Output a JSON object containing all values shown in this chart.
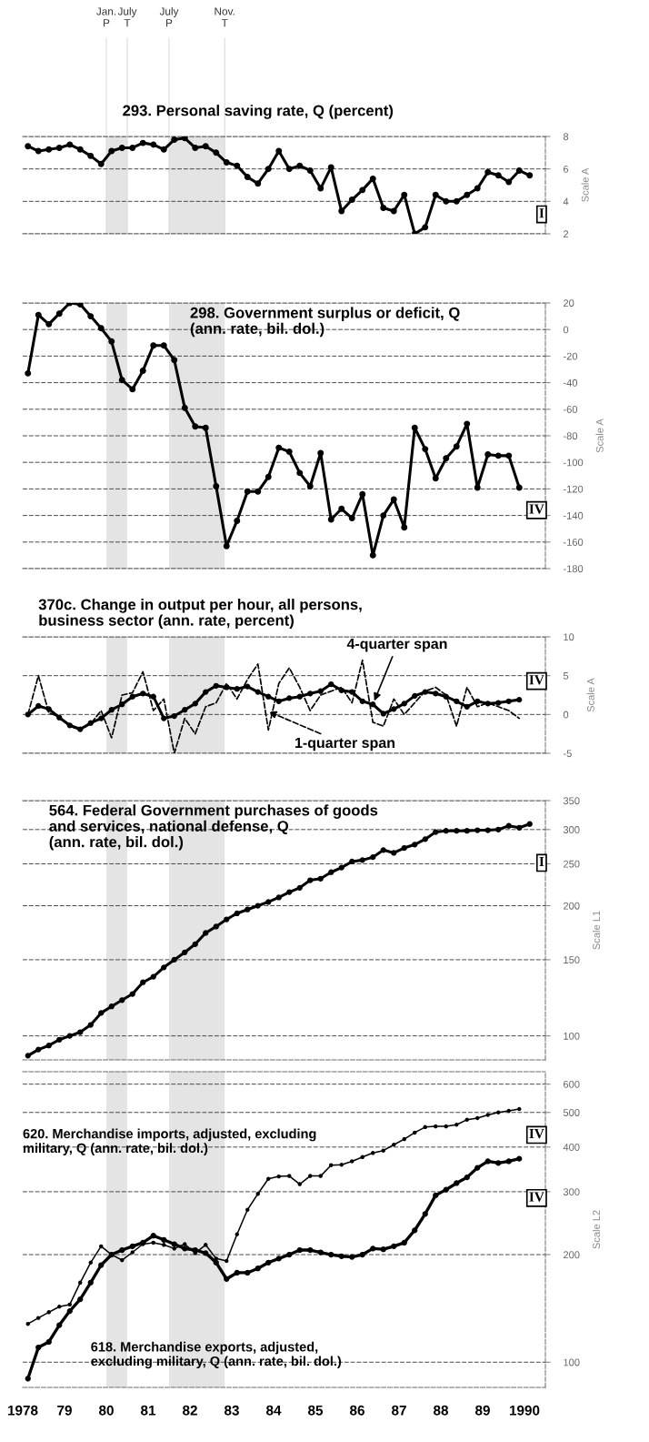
{
  "chart_data": [
    {
      "type": "line",
      "title": "293. Personal saving rate, Q (percent)",
      "ylabel": "Scale A",
      "x": [
        1978.125,
        1978.375,
        1978.625,
        1978.875,
        1979.125,
        1979.375,
        1979.625,
        1979.875,
        1980.125,
        1980.375,
        1980.625,
        1980.875,
        1981.125,
        1981.375,
        1981.625,
        1981.875,
        1982.125,
        1982.375,
        1982.625,
        1982.875,
        1983.125,
        1983.375,
        1983.625,
        1983.875,
        1984.125,
        1984.375,
        1984.625,
        1984.875,
        1985.125,
        1985.375,
        1985.625,
        1985.875,
        1986.125,
        1986.375,
        1986.625,
        1986.875,
        1987.125,
        1987.375,
        1987.625,
        1987.875,
        1988.125,
        1988.375,
        1988.625,
        1988.875,
        1989.125,
        1989.375,
        1989.625,
        1989.875,
        1990.125
      ],
      "series": [
        {
          "color": "#000000",
          "values": [
            7.4,
            7.1,
            7.2,
            7.3,
            7.5,
            7.2,
            6.8,
            6.3,
            7.1,
            7.3,
            7.3,
            7.6,
            7.5,
            7.2,
            7.8,
            7.9,
            7.3,
            7.4,
            7.0,
            6.4,
            6.2,
            5.5,
            5.1,
            6.0,
            7.1,
            6.0,
            6.2,
            5.9,
            4.8,
            6.1,
            3.4,
            4.1,
            4.7,
            5.4,
            3.6,
            3.4,
            4.4,
            2.0,
            2.4,
            4.4,
            4.0,
            4.0,
            4.4,
            4.8,
            5.8,
            5.6,
            5.2,
            5.9,
            5.6
          ]
        }
      ],
      "marker": "circle",
      "xlim": [
        1978,
        1990.5
      ],
      "ylim": [
        2,
        8
      ],
      "yticks": [
        2,
        4,
        6,
        8
      ],
      "grid": "y",
      "tick_labels": "y",
      "bands": [
        {
          "axis": "x",
          "from": 1980.0,
          "to": 1980.5,
          "color": "#e4e4e4"
        },
        {
          "axis": "x",
          "from": 1981.5,
          "to": 1982.83,
          "color": "#e4e4e4"
        }
      ],
      "ref_lines": [
        {
          "axis": "x",
          "value": 1980.0,
          "label": "Jan.\nP",
          "color": "#d0d0d0"
        },
        {
          "axis": "x",
          "value": 1980.5,
          "label": "July\nT",
          "color": "#d0d0d0"
        },
        {
          "axis": "x",
          "value": 1981.5,
          "label": "July\nP",
          "color": "#d0d0d0"
        },
        {
          "axis": "x",
          "value": 1982.83,
          "label": "Nov.\nT",
          "color": "#d0d0d0"
        }
      ],
      "annotations": [
        "I"
      ]
    },
    {
      "type": "line",
      "title": "298. Government surplus or deficit, Q\n(ann. rate, bil. dol.)",
      "ylabel": "Scale A",
      "x": [
        1978.125,
        1978.375,
        1978.625,
        1978.875,
        1979.125,
        1979.375,
        1979.625,
        1979.875,
        1980.125,
        1980.375,
        1980.625,
        1980.875,
        1981.125,
        1981.375,
        1981.625,
        1981.875,
        1982.125,
        1982.375,
        1982.625,
        1982.875,
        1983.125,
        1983.375,
        1983.625,
        1983.875,
        1984.125,
        1984.375,
        1984.625,
        1984.875,
        1985.125,
        1985.375,
        1985.625,
        1985.875,
        1986.125,
        1986.375,
        1986.625,
        1986.875,
        1987.125,
        1987.375,
        1987.625,
        1987.875,
        1988.125,
        1988.375,
        1988.625,
        1988.875,
        1989.125,
        1989.375,
        1989.625,
        1989.875
      ],
      "series": [
        {
          "color": "#000000",
          "values": [
            -33,
            11,
            4,
            12,
            20,
            19,
            10,
            1,
            -9,
            -38,
            -45,
            -31,
            -12,
            -12,
            -23,
            -59,
            -73,
            -74,
            -118,
            -163,
            -144,
            -122,
            -122,
            -111,
            -89,
            -92,
            -108,
            -118,
            -93,
            -143,
            -135,
            -142,
            -124,
            -170,
            -140,
            -128,
            -149,
            -74,
            -90,
            -112,
            -97,
            -88,
            -71,
            -119,
            -94,
            -95,
            -95,
            -119
          ]
        }
      ],
      "marker": "circle",
      "xlim": [
        1978,
        1990.5
      ],
      "ylim": [
        -180,
        20
      ],
      "yticks": [
        -180,
        -160,
        -140,
        -120,
        -100,
        -80,
        -60,
        -40,
        -20,
        0,
        20
      ],
      "grid": "y",
      "tick_labels": "y",
      "bands": [
        {
          "axis": "x",
          "from": 1980.0,
          "to": 1980.5,
          "color": "#e4e4e4"
        },
        {
          "axis": "x",
          "from": 1981.5,
          "to": 1982.83,
          "color": "#e4e4e4"
        }
      ],
      "annotations": [
        "IV"
      ]
    },
    {
      "type": "line",
      "title": "370c. Change in output per hour, all persons,\nbusiness sector (ann. rate, percent)",
      "ylabel": "Scale A",
      "x": [
        1978.125,
        1978.375,
        1978.625,
        1978.875,
        1979.125,
        1979.375,
        1979.625,
        1979.875,
        1980.125,
        1980.375,
        1980.625,
        1980.875,
        1981.125,
        1981.375,
        1981.625,
        1981.875,
        1982.125,
        1982.375,
        1982.625,
        1982.875,
        1983.125,
        1983.375,
        1983.625,
        1983.875,
        1984.125,
        1984.375,
        1984.625,
        1984.875,
        1985.125,
        1985.375,
        1985.625,
        1985.875,
        1986.125,
        1986.375,
        1986.625,
        1986.875,
        1987.125,
        1987.375,
        1987.625,
        1987.875,
        1988.125,
        1988.375,
        1988.625,
        1988.875,
        1989.125,
        1989.375,
        1989.625,
        1989.875
      ],
      "series": [
        {
          "name": "4-quarter span",
          "color": "#000000",
          "marker": "circle",
          "line_style": "solid",
          "values": [
            0.0,
            1.1,
            0.7,
            -0.4,
            -1.4,
            -1.9,
            -1.1,
            -0.5,
            0.6,
            1.3,
            2.3,
            2.7,
            2.3,
            -0.5,
            -0.2,
            0.6,
            1.4,
            2.9,
            3.7,
            3.5,
            3.3,
            3.6,
            2.9,
            2.3,
            1.7,
            2.1,
            2.3,
            2.7,
            3.0,
            3.9,
            3.1,
            2.9,
            1.7,
            1.3,
            0.1,
            0.7,
            1.4,
            2.4,
            2.9,
            2.7,
            2.3,
            1.7,
            1.0,
            1.7,
            1.4,
            1.5,
            1.7,
            1.9
          ]
        },
        {
          "name": "1-quarter span",
          "color": "#000000",
          "marker": "none",
          "line_style": "dashed",
          "values": [
            0.0,
            5.0,
            0.2,
            -0.3,
            -1.5,
            -2.0,
            -1.2,
            0.5,
            -3.0,
            2.5,
            2.8,
            5.5,
            0.5,
            2.0,
            -5.0,
            -0.5,
            -2.5,
            1.0,
            1.5,
            4.0,
            2.0,
            4.5,
            6.5,
            -2.0,
            4.0,
            6.0,
            3.5,
            0.5,
            2.5,
            3.0,
            3.5,
            1.5,
            7.0,
            -1.0,
            -1.5,
            2.0,
            0.0,
            1.5,
            3.0,
            3.5,
            2.5,
            -1.5,
            3.5,
            1.0,
            1.5,
            1.0,
            0.5,
            -0.5
          ]
        }
      ],
      "xlim": [
        1978,
        1990.5
      ],
      "ylim": [
        -5,
        10
      ],
      "yticks": [
        -5,
        0,
        5,
        10
      ],
      "grid": "y",
      "tick_labels": "y",
      "bands": [
        {
          "axis": "x",
          "from": 1980.0,
          "to": 1980.5,
          "color": "#e4e4e4"
        },
        {
          "axis": "x",
          "from": 1981.5,
          "to": 1982.83,
          "color": "#e4e4e4"
        }
      ],
      "annotations": [
        "IV"
      ]
    },
    {
      "type": "line",
      "title": "564. Federal Government purchases of goods\nand services, national defense, Q\n(ann. rate, bil. dol.)",
      "ylabel": "Scale L1",
      "x": [
        1978.125,
        1978.375,
        1978.625,
        1978.875,
        1979.125,
        1979.375,
        1979.625,
        1979.875,
        1980.125,
        1980.375,
        1980.625,
        1980.875,
        1981.125,
        1981.375,
        1981.625,
        1981.875,
        1982.125,
        1982.375,
        1982.625,
        1982.875,
        1983.125,
        1983.375,
        1983.625,
        1983.875,
        1984.125,
        1984.375,
        1984.625,
        1984.875,
        1985.125,
        1985.375,
        1985.625,
        1985.875,
        1986.125,
        1986.375,
        1986.625,
        1986.875,
        1987.125,
        1987.375,
        1987.625,
        1987.875,
        1988.125,
        1988.375,
        1988.625,
        1988.875,
        1989.125,
        1989.375,
        1989.625,
        1989.875,
        1990.125
      ],
      "series": [
        {
          "color": "#000000",
          "values": [
            90,
            93,
            95,
            98,
            100,
            102,
            106,
            113,
            117,
            121,
            125,
            133,
            137,
            144,
            150,
            156,
            163,
            173,
            179,
            186,
            192,
            196,
            200,
            204,
            209,
            215,
            220,
            229,
            231,
            239,
            245,
            253,
            255,
            259,
            269,
            265,
            272,
            277,
            285,
            296,
            298,
            298,
            298,
            299,
            299,
            300,
            306,
            303,
            309
          ]
        }
      ],
      "marker": "circle",
      "log": true,
      "xlim": [
        1978,
        1990.5
      ],
      "ylim": [
        88,
        350
      ],
      "yticks": [
        100,
        150,
        200,
        250,
        300,
        350
      ],
      "grid": "y",
      "tick_labels": "y",
      "bands": [
        {
          "axis": "x",
          "from": 1980.0,
          "to": 1980.5,
          "color": "#e4e4e4"
        },
        {
          "axis": "x",
          "from": 1981.5,
          "to": 1982.83,
          "color": "#e4e4e4"
        }
      ],
      "annotations": [
        "I"
      ]
    },
    {
      "type": "line",
      "ylabel": "Scale L2",
      "x": [
        1978.125,
        1978.375,
        1978.625,
        1978.875,
        1979.125,
        1979.375,
        1979.625,
        1979.875,
        1980.125,
        1980.375,
        1980.625,
        1980.875,
        1981.125,
        1981.375,
        1981.625,
        1981.875,
        1982.125,
        1982.375,
        1982.625,
        1982.875,
        1983.125,
        1983.375,
        1983.625,
        1983.875,
        1984.125,
        1984.375,
        1984.625,
        1984.875,
        1985.125,
        1985.375,
        1985.625,
        1985.875,
        1986.125,
        1986.375,
        1986.625,
        1986.875,
        1987.125,
        1987.375,
        1987.625,
        1987.875,
        1988.125,
        1988.375,
        1988.625,
        1988.875,
        1989.125,
        1989.375,
        1989.625,
        1989.875
      ],
      "series": [
        {
          "name": "620. Merchandise imports, adjusted, excluding\nmilitary, Q (ann. rate, bil. dol.)",
          "color": "#000000",
          "marker": "circle",
          "values": [
            128,
            133,
            138,
            143,
            145,
            167,
            190,
            211,
            200,
            193,
            203,
            214,
            216,
            213,
            208,
            214,
            202,
            213,
            195,
            192,
            228,
            267,
            296,
            326,
            331,
            332,
            315,
            332,
            332,
            356,
            357,
            365,
            375,
            385,
            391,
            406,
            421,
            439,
            455,
            457,
            457,
            462,
            477,
            482,
            492,
            500,
            505,
            511
          ]
        },
        {
          "name": "618. Merchandise exports, adjusted,\nexcluding military, Q (ann. rate, bil. dol.)",
          "color": "#000000",
          "marker": "circle",
          "values": [
            90,
            110,
            114,
            127,
            139,
            150,
            167,
            187,
            200,
            206,
            211,
            216,
            226,
            220,
            214,
            208,
            206,
            202,
            190,
            171,
            178,
            178,
            183,
            190,
            195,
            200,
            206,
            206,
            203,
            200,
            198,
            197,
            200,
            208,
            207,
            211,
            216,
            234,
            260,
            293,
            304,
            317,
            329,
            350,
            365,
            361,
            365,
            371
          ]
        }
      ],
      "log": true,
      "xlim": [
        1978,
        1990.5
      ],
      "ylim": [
        85,
        650
      ],
      "yticks": [
        100,
        200,
        300,
        400,
        500,
        600
      ],
      "grid": "y",
      "xticks": [
        1978,
        {
          "value": 1979,
          "label": "79"
        },
        {
          "value": 1980,
          "label": "80"
        },
        {
          "value": 1981,
          "label": "81"
        },
        {
          "value": 1982,
          "label": "82"
        },
        {
          "value": 1983,
          "label": "83"
        },
        {
          "value": 1984,
          "label": "84"
        },
        {
          "value": 1985,
          "label": "85"
        },
        {
          "value": 1986,
          "label": "86"
        },
        {
          "value": 1987,
          "label": "87"
        },
        {
          "value": 1988,
          "label": "88"
        },
        {
          "value": 1989,
          "label": "89"
        },
        1990
      ],
      "bands": [
        {
          "axis": "x",
          "from": 1980.0,
          "to": 1980.5,
          "color": "#e4e4e4"
        },
        {
          "axis": "x",
          "from": 1981.5,
          "to": 1982.83,
          "color": "#e4e4e4"
        }
      ],
      "annotations": [
        "IV",
        "IV"
      ]
    }
  ]
}
